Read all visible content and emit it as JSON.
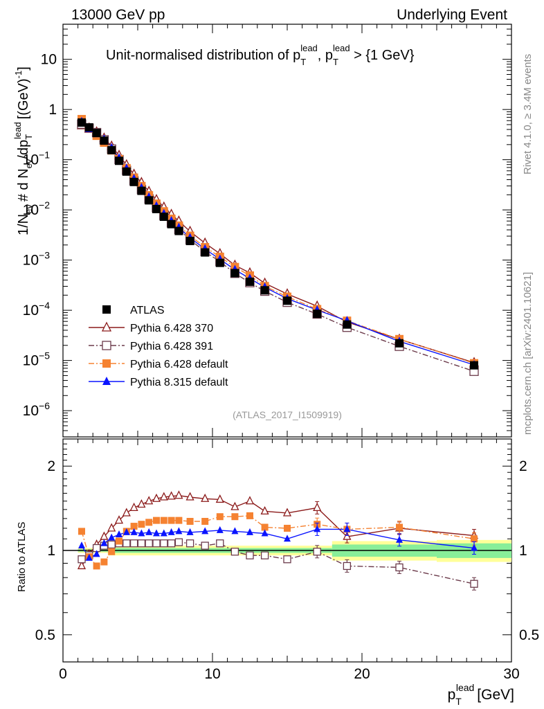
{
  "header": {
    "left": "13000 GeV pp",
    "right": "Underlying Event"
  },
  "plot_title": {
    "prefix": "Unit-normalised distribution of p",
    "sub": "T",
    "sup": "lead",
    "mid": ", p",
    "sub2": "T",
    "sup2": "lead",
    "suffix": " > {1 GeV}"
  },
  "side_labels": {
    "rivet": "Rivet 4.1.0, ≥ 3.4M events",
    "mcplots": "mcplots.cern.ch [arXiv:2401.10621]"
  },
  "analysis_id": "(ATLAS_2017_I1509919)",
  "axes": {
    "ylabel_main": "1/N_ev # d N_ev/dp_T^lead [(GeV)^-1]",
    "ylabel_main_parts": {
      "a": "1/N",
      "a_sub": "ev",
      "b": "# d N",
      "b_sub": "ev",
      "c": "/dp",
      "c_sub": "T",
      "c_sup": "lead",
      "d": "[(GeV)",
      "d_sup": "-1",
      "e": "]"
    },
    "ylabel_ratio": "Ratio to ATLAS",
    "xlabel": {
      "main": "p",
      "sub": "T",
      "sup": "lead",
      "unit": "[GeV]"
    },
    "xlim": [
      0,
      30
    ],
    "ylim_main": [
      3e-07,
      50
    ],
    "ylim_ratio": [
      0.4,
      2.5
    ],
    "x_ticks": [
      "0",
      "10",
      "20",
      "30"
    ],
    "y_ticks_main": [
      {
        "value": 10,
        "base": "10",
        "exp": ""
      },
      {
        "value": 1,
        "base": "1",
        "exp": ""
      },
      {
        "value": 0.1,
        "base": "10",
        "exp": "−1"
      },
      {
        "value": 0.01,
        "base": "10",
        "exp": "−2"
      },
      {
        "value": 0.001,
        "base": "10",
        "exp": "−3"
      },
      {
        "value": 0.0001,
        "base": "10",
        "exp": "−4"
      },
      {
        "value": 1e-05,
        "base": "10",
        "exp": "−5"
      },
      {
        "value": 1e-06,
        "base": "10",
        "exp": "−6"
      }
    ],
    "y_ticks_ratio": [
      "0.5",
      "1",
      "2"
    ]
  },
  "chart_data": {
    "type": "scatter",
    "log_y": true,
    "x": [
      1.25,
      1.75,
      2.25,
      2.75,
      3.25,
      3.75,
      4.25,
      4.75,
      5.25,
      5.75,
      6.25,
      6.75,
      7.25,
      7.75,
      8.5,
      9.5,
      10.5,
      11.5,
      12.5,
      13.5,
      15,
      17,
      19,
      22.5,
      27.5
    ],
    "atlas": {
      "name": "ATLAS",
      "values": [
        0.55,
        0.44,
        0.34,
        0.24,
        0.155,
        0.095,
        0.058,
        0.036,
        0.024,
        0.0155,
        0.0104,
        0.0073,
        0.0052,
        0.0038,
        0.0024,
        0.00142,
        0.00088,
        0.00055,
        0.00037,
        0.00025,
        0.000155,
        8.5e-05,
        5.2e-05,
        2.2e-05,
        8e-06
      ]
    },
    "series": [
      {
        "name": "Pythia 6.428 370",
        "color": "#8b1a1a",
        "marker": "triangle-open",
        "dash": "",
        "ratio": [
          0.88,
          0.97,
          1.05,
          1.12,
          1.2,
          1.28,
          1.36,
          1.42,
          1.46,
          1.5,
          1.53,
          1.55,
          1.56,
          1.57,
          1.55,
          1.53,
          1.52,
          1.43,
          1.5,
          1.38,
          1.36,
          1.42,
          1.12,
          1.2,
          1.13
        ]
      },
      {
        "name": "Pythia 6.428 391",
        "color": "#6b3a4a",
        "marker": "square-open",
        "dash": "8,3,2,3",
        "ratio": [
          0.93,
          0.96,
          1.02,
          1.04,
          1.05,
          1.06,
          1.06,
          1.06,
          1.06,
          1.06,
          1.06,
          1.06,
          1.06,
          1.07,
          1.06,
          1.04,
          1.06,
          0.99,
          0.96,
          0.96,
          0.93,
          0.99,
          0.88,
          0.87,
          0.76
        ]
      },
      {
        "name": "Pythia 6.428 default",
        "color": "#f58231",
        "marker": "square",
        "dash": "8,3,2,3",
        "ratio": [
          1.17,
          0.95,
          0.88,
          0.91,
          0.99,
          1.08,
          1.17,
          1.22,
          1.24,
          1.26,
          1.28,
          1.28,
          1.28,
          1.28,
          1.27,
          1.27,
          1.32,
          1.32,
          1.33,
          1.21,
          1.2,
          1.24,
          1.19,
          1.21,
          1.1
        ]
      },
      {
        "name": "Pythia 8.315 default",
        "color": "#0a14ff",
        "marker": "triangle",
        "dash": "",
        "ratio": [
          1.04,
          0.94,
          0.97,
          1.06,
          1.11,
          1.14,
          1.16,
          1.16,
          1.15,
          1.16,
          1.15,
          1.15,
          1.16,
          1.17,
          1.16,
          1.17,
          1.18,
          1.17,
          1.16,
          1.15,
          1.1,
          1.19,
          1.19,
          1.09,
          1.02
        ]
      }
    ],
    "uncertainty_bands": [
      {
        "x0": 1.0,
        "x1": 3.0,
        "inner": 0.01,
        "outer": 0.02
      },
      {
        "x0": 3.0,
        "x1": 18.0,
        "inner": 0.02,
        "outer": 0.04
      },
      {
        "x0": 18.0,
        "x1": 25.0,
        "inner": 0.05,
        "outer": 0.08
      },
      {
        "x0": 25.0,
        "x1": 30.0,
        "inner": 0.06,
        "outer": 0.09
      }
    ]
  }
}
